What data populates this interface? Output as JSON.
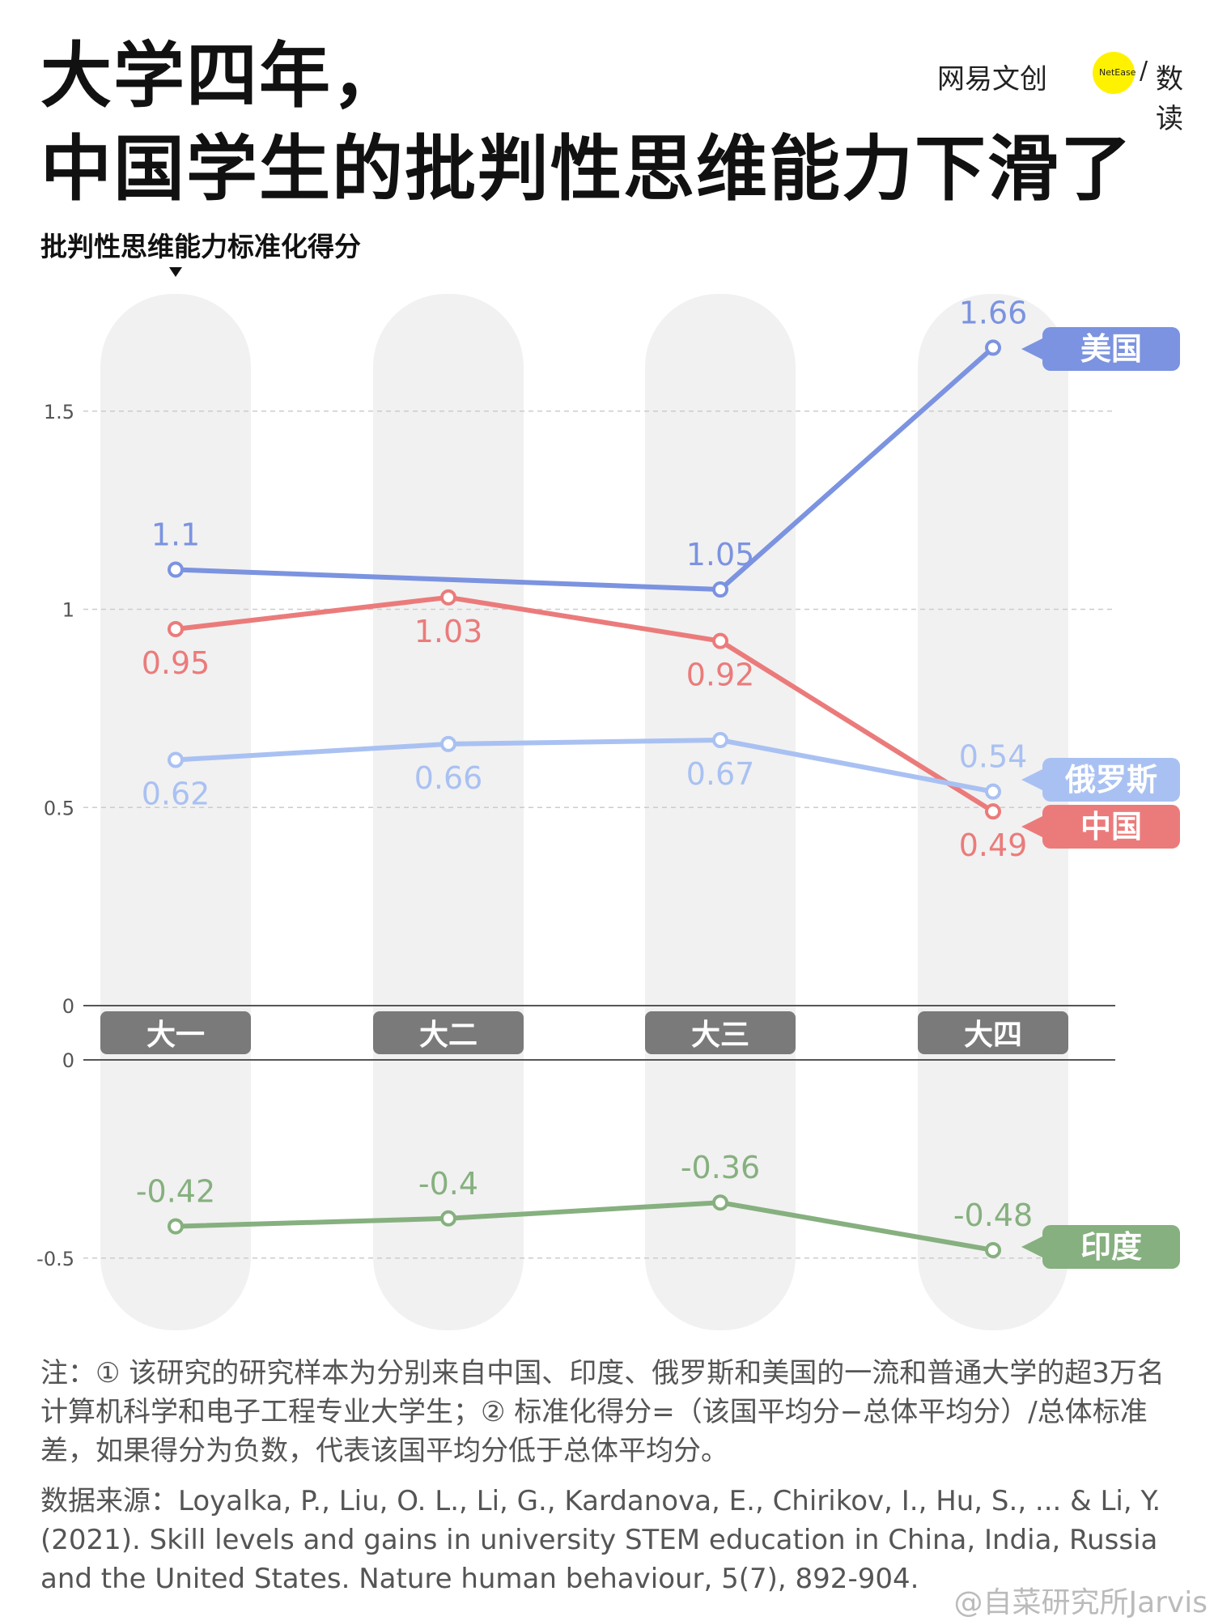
{
  "header": {
    "title_line1": "大学四年，",
    "title_line2": "中国学生的批判性思维能力下滑了",
    "logo": {
      "left": "网易文创",
      "badge": "NetEase",
      "separator": "/",
      "right": "数读",
      "badge_color": "#fff200"
    }
  },
  "chart_data": {
    "type": "line",
    "ylabel": "批判性思维能力标准化得分",
    "categories": [
      "大一",
      "大二",
      "大三",
      "大四"
    ],
    "yticks_upper": [
      "1.5",
      "1",
      "0.5",
      "0"
    ],
    "yticks_lower": [
      "0",
      "-0.5"
    ],
    "ylim_upper": [
      0,
      1.75
    ],
    "ylim_lower": [
      -0.6,
      0
    ],
    "grid": true,
    "series": [
      {
        "name": "美国",
        "values": [
          1.1,
          null,
          1.05,
          1.66
        ],
        "labels": [
          "1.1",
          "",
          "1.05",
          "1.66"
        ],
        "color": "#7b93e0"
      },
      {
        "name": "中国",
        "values": [
          0.95,
          1.03,
          0.92,
          0.49
        ],
        "labels": [
          "0.95",
          "1.03",
          "0.92",
          "0.49"
        ],
        "color": "#eb7b7b"
      },
      {
        "name": "俄罗斯",
        "values": [
          0.62,
          0.66,
          0.67,
          0.54
        ],
        "labels": [
          "0.62",
          "0.66",
          "0.67",
          "0.54"
        ],
        "color": "#a9c1f2"
      },
      {
        "name": "印度",
        "values": [
          -0.42,
          -0.4,
          -0.36,
          -0.48
        ],
        "labels": [
          "-0.42",
          "-0.4",
          "-0.36",
          "-0.48"
        ],
        "color": "#86b07f"
      }
    ]
  },
  "footer": {
    "note": "注：① 该研究的研究样本为分别来自中国、印度、俄罗斯和美国的一流和普通大学的超3万名计算机科学和电子工程专业大学生；② 标准化得分=（该国平均分−总体平均分）/总体标准差，如果得分为负数，代表该国平均分低于总体平均分。",
    "source": "数据来源：Loyalka, P., Liu, O. L., Li, G., Kardanova, E., Chirikov, I., Hu, S., ... & Li, Y. (2021). Skill levels and gains in university STEM education in China, India, Russia and the United States. Nature human behaviour, 5(7), 892-904.",
    "watermark": "@自菜研究所Jarvis"
  }
}
